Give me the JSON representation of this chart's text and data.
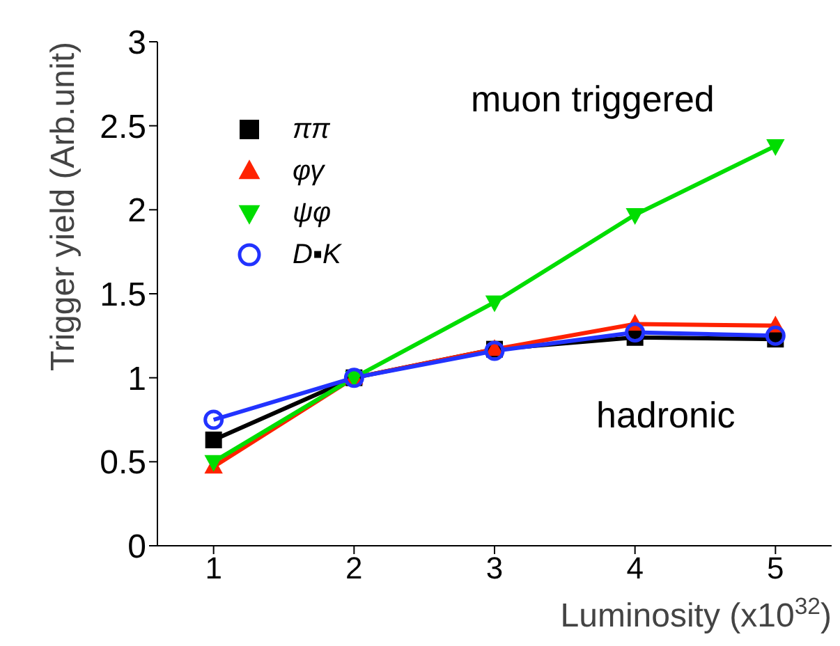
{
  "chart_data": {
    "type": "line",
    "xlabel": "Luminosity (x10$^{32}$)",
    "ylabel": "Trigger yield (Arb.unit)",
    "x": [
      1,
      2,
      3,
      4,
      5
    ],
    "xlim": [
      0.6,
      5.4
    ],
    "xticks": [
      1,
      2,
      3,
      4,
      5
    ],
    "ylim": [
      0,
      3
    ],
    "yticks": [
      0,
      0.5,
      1,
      1.5,
      2,
      2.5,
      3
    ],
    "legend": "top left",
    "grid": false,
    "series": [
      {
        "name": "ππ",
        "color": "#000000",
        "marker": "square",
        "values": [
          0.63,
          1.0,
          1.17,
          1.24,
          1.23
        ]
      },
      {
        "name": "φγ",
        "color": "#ff2200",
        "marker": "triangle",
        "values": [
          0.47,
          1.0,
          1.17,
          1.32,
          1.31
        ]
      },
      {
        "name": "ψφ",
        "color": "#00dd00",
        "marker": "triangle-down",
        "values": [
          0.5,
          1.0,
          1.45,
          1.97,
          2.38
        ]
      },
      {
        "name": "D▪K",
        "color": "#2233ff",
        "marker": "circle",
        "values": [
          0.75,
          1.0,
          1.16,
          1.27,
          1.25
        ]
      }
    ],
    "annotations": [
      "muon triggered",
      "hadronic"
    ]
  }
}
